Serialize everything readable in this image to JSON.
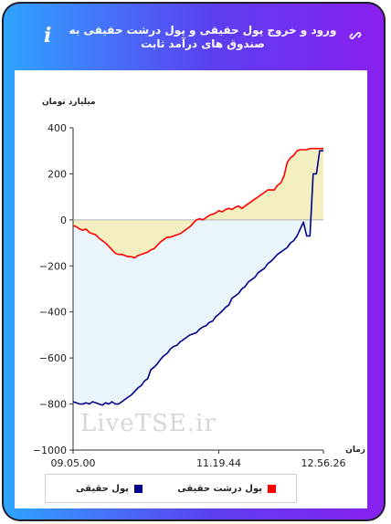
{
  "header": {
    "title": "ورود و خروج پول حقیقی و پول درشت حقیقی به صندوق های درآمد ثابت",
    "info_icon": "i"
  },
  "watermark": "LiveTSE.ir",
  "legend": {
    "items": [
      {
        "label": "پول درشت حقیقی",
        "color": "#ff0000"
      },
      {
        "label": "پول حقیقی",
        "color": "#00008b"
      }
    ]
  },
  "colors": {
    "real_money": "#00008b",
    "big_real_money": "#ff0000",
    "negative_fill": "#eaf4fb",
    "positive_fill": "#f3efc0"
  },
  "chart_data": {
    "type": "line",
    "ylabel": "میلیارد تومان",
    "xlabel": "زمان",
    "ylim": [
      -1000,
      400
    ],
    "yticks": [
      400,
      200,
      0,
      -200,
      -400,
      -600,
      -800,
      -1000
    ],
    "yticklabels": [
      "400",
      "200",
      "0",
      "−200",
      "−400",
      "−600",
      "−800",
      "−1000"
    ],
    "xlim": [
      "09.05.00",
      "12.56.26"
    ],
    "xticks": [
      "09.05.00",
      "11.19.44",
      "12.56.26"
    ],
    "series": [
      {
        "name": "پول حقیقی",
        "x": [
          "09.05.00",
          "09.08.00",
          "09.11.00",
          "09.14.00",
          "09.17.00",
          "09.20.00",
          "09.23.00",
          "09.26.00",
          "09.29.00",
          "09.32.00",
          "09.35.00",
          "09.38.00",
          "09.41.00",
          "09.44.00",
          "09.47.00",
          "09.50.00",
          "09.53.00",
          "09.56.00",
          "09.59.00",
          "10.02.00",
          "10.05.00",
          "10.08.00",
          "10.11.00",
          "10.14.00",
          "10.17.00",
          "10.20.00",
          "10.23.00",
          "10.26.00",
          "10.29.00",
          "10.32.00",
          "10.35.00",
          "10.38.00",
          "10.41.00",
          "10.44.00",
          "10.47.00",
          "10.50.00",
          "10.53.00",
          "10.56.00",
          "10.59.00",
          "11.02.00",
          "11.05.00",
          "11.08.00",
          "11.11.00",
          "11.14.00",
          "11.17.00",
          "11.19.44",
          "11.23.00",
          "11.26.00",
          "11.29.00",
          "11.32.00",
          "11.35.00",
          "11.38.00",
          "11.41.00",
          "11.44.00",
          "11.47.00",
          "11.50.00",
          "11.53.00",
          "11.56.00",
          "11.59.00",
          "12.02.00",
          "12.05.00",
          "12.08.00",
          "12.11.00",
          "12.14.00",
          "12.17.00",
          "12.20.00",
          "12.23.00",
          "12.26.00",
          "12.29.00",
          "12.32.00",
          "12.35.00",
          "12.38.00",
          "12.41.00",
          "12.44.00",
          "12.47.00",
          "12.50.00",
          "12.53.00",
          "12.56.26"
        ],
        "values": [
          -790,
          -795,
          -800,
          -800,
          -795,
          -800,
          -790,
          -795,
          -800,
          -805,
          -795,
          -800,
          -790,
          -800,
          -800,
          -790,
          -780,
          -770,
          -760,
          -745,
          -730,
          -720,
          -700,
          -690,
          -650,
          -640,
          -625,
          -605,
          -590,
          -580,
          -560,
          -550,
          -545,
          -530,
          -520,
          -510,
          -500,
          -495,
          -490,
          -475,
          -465,
          -460,
          -445,
          -440,
          -420,
          -410,
          -395,
          -380,
          -370,
          -340,
          -330,
          -320,
          -300,
          -290,
          -270,
          -260,
          -250,
          -230,
          -220,
          -210,
          -190,
          -180,
          -165,
          -150,
          -140,
          -130,
          -120,
          -100,
          -90,
          -70,
          -40,
          -10,
          -70,
          -70,
          200,
          200,
          300,
          300
        ]
      },
      {
        "name": "پول درشت حقیقی",
        "x": [
          "09.05.00",
          "09.08.00",
          "09.11.00",
          "09.14.00",
          "09.17.00",
          "09.20.00",
          "09.23.00",
          "09.26.00",
          "09.29.00",
          "09.32.00",
          "09.35.00",
          "09.38.00",
          "09.41.00",
          "09.44.00",
          "09.47.00",
          "09.50.00",
          "09.53.00",
          "09.56.00",
          "09.59.00",
          "10.02.00",
          "10.05.00",
          "10.08.00",
          "10.11.00",
          "10.14.00",
          "10.17.00",
          "10.20.00",
          "10.23.00",
          "10.26.00",
          "10.29.00",
          "10.32.00",
          "10.35.00",
          "10.38.00",
          "10.41.00",
          "10.44.00",
          "10.47.00",
          "10.50.00",
          "10.53.00",
          "10.56.00",
          "10.59.00",
          "11.02.00",
          "11.05.00",
          "11.08.00",
          "11.11.00",
          "11.14.00",
          "11.17.00",
          "11.19.44",
          "11.23.00",
          "11.26.00",
          "11.29.00",
          "11.32.00",
          "11.35.00",
          "11.38.00",
          "11.41.00",
          "11.44.00",
          "11.47.00",
          "11.50.00",
          "11.53.00",
          "11.56.00",
          "11.59.00",
          "12.02.00",
          "12.05.00",
          "12.08.00",
          "12.11.00",
          "12.14.00",
          "12.17.00",
          "12.20.00",
          "12.23.00",
          "12.26.00",
          "12.29.00",
          "12.32.00",
          "12.35.00",
          "12.38.00",
          "12.41.00",
          "12.44.00",
          "12.47.00",
          "12.50.00",
          "12.53.00",
          "12.56.26"
        ],
        "values": [
          -25,
          -30,
          -40,
          -45,
          -40,
          -55,
          -60,
          -65,
          -80,
          -90,
          -100,
          -115,
          -130,
          -145,
          -150,
          -150,
          -155,
          -160,
          -160,
          -165,
          -155,
          -150,
          -145,
          -140,
          -130,
          -125,
          -110,
          -95,
          -85,
          -75,
          -75,
          -70,
          -65,
          -60,
          -50,
          -40,
          -30,
          -15,
          0,
          5,
          0,
          10,
          20,
          25,
          30,
          40,
          35,
          45,
          50,
          45,
          55,
          60,
          50,
          60,
          70,
          80,
          90,
          100,
          110,
          120,
          130,
          130,
          130,
          150,
          160,
          190,
          250,
          270,
          280,
          300,
          305,
          305,
          305,
          310,
          310,
          310,
          310,
          310
        ]
      }
    ]
  }
}
